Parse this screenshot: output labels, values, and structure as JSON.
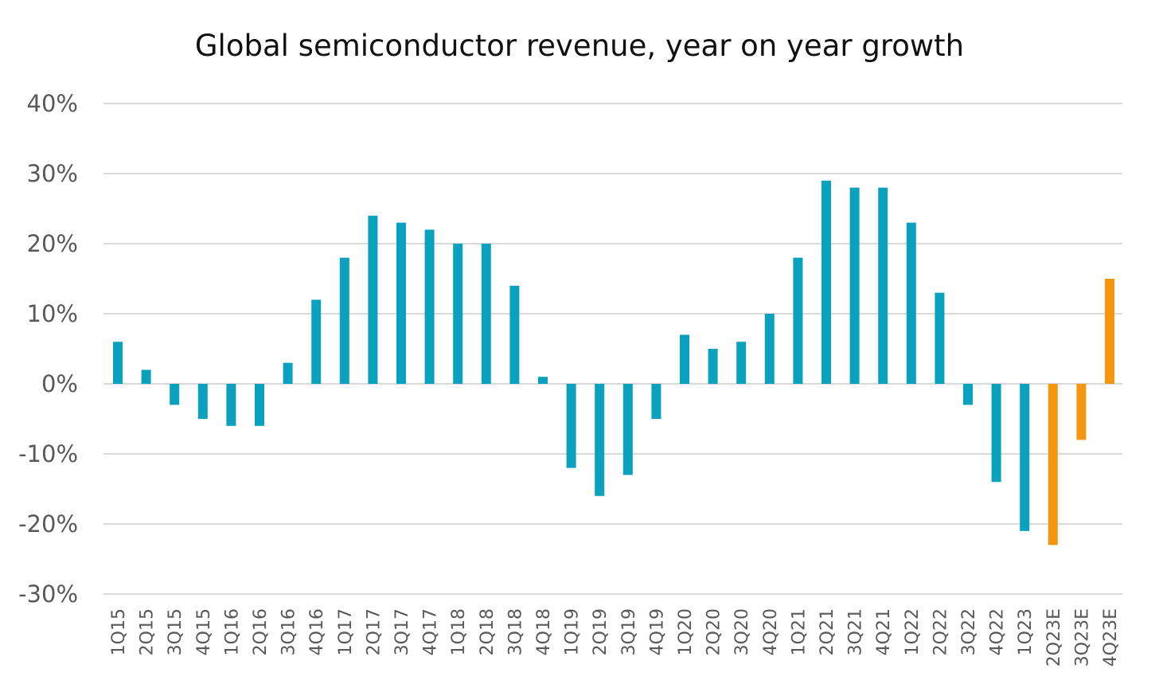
{
  "chart_data": {
    "type": "bar",
    "title": "Global semiconductor revenue, year on year growth",
    "xlabel": "",
    "ylabel": "",
    "ylim": [
      -30,
      40
    ],
    "yticks": [
      40,
      30,
      20,
      10,
      0,
      -10,
      -20,
      -30
    ],
    "ytick_labels": [
      "40%",
      "30%",
      "20%",
      "10%",
      "0%",
      "-10%",
      "-20%",
      "-30%"
    ],
    "grid": true,
    "legend": "none",
    "categories": [
      "1Q15",
      "2Q15",
      "3Q15",
      "4Q15",
      "1Q16",
      "2Q16",
      "3Q16",
      "4Q16",
      "1Q17",
      "2Q17",
      "3Q17",
      "4Q17",
      "1Q18",
      "2Q18",
      "3Q18",
      "4Q18",
      "1Q19",
      "2Q19",
      "3Q19",
      "4Q19",
      "1Q20",
      "2Q20",
      "3Q20",
      "4Q20",
      "1Q21",
      "2Q21",
      "3Q21",
      "4Q21",
      "1Q22",
      "2Q22",
      "3Q22",
      "4Q22",
      "1Q23",
      "2Q23E",
      "3Q23E",
      "4Q23E"
    ],
    "values": [
      6,
      2,
      -3,
      -5,
      -6,
      -6,
      3,
      12,
      18,
      24,
      23,
      22,
      20,
      20,
      14,
      1,
      -12,
      -16,
      -13,
      -5,
      7,
      5,
      6,
      10,
      18,
      29,
      28,
      28,
      23,
      13,
      -3,
      -14,
      -21,
      -23,
      -8,
      15
    ],
    "estimated": [
      false,
      false,
      false,
      false,
      false,
      false,
      false,
      false,
      false,
      false,
      false,
      false,
      false,
      false,
      false,
      false,
      false,
      false,
      false,
      false,
      false,
      false,
      false,
      false,
      false,
      false,
      false,
      false,
      false,
      false,
      false,
      false,
      false,
      true,
      true,
      true
    ],
    "colors": {
      "actual": "#0aa1bf",
      "estimate": "#f5960f",
      "grid": "#d9d9d9",
      "tick_text": "#595959",
      "title_text": "#111111"
    }
  }
}
